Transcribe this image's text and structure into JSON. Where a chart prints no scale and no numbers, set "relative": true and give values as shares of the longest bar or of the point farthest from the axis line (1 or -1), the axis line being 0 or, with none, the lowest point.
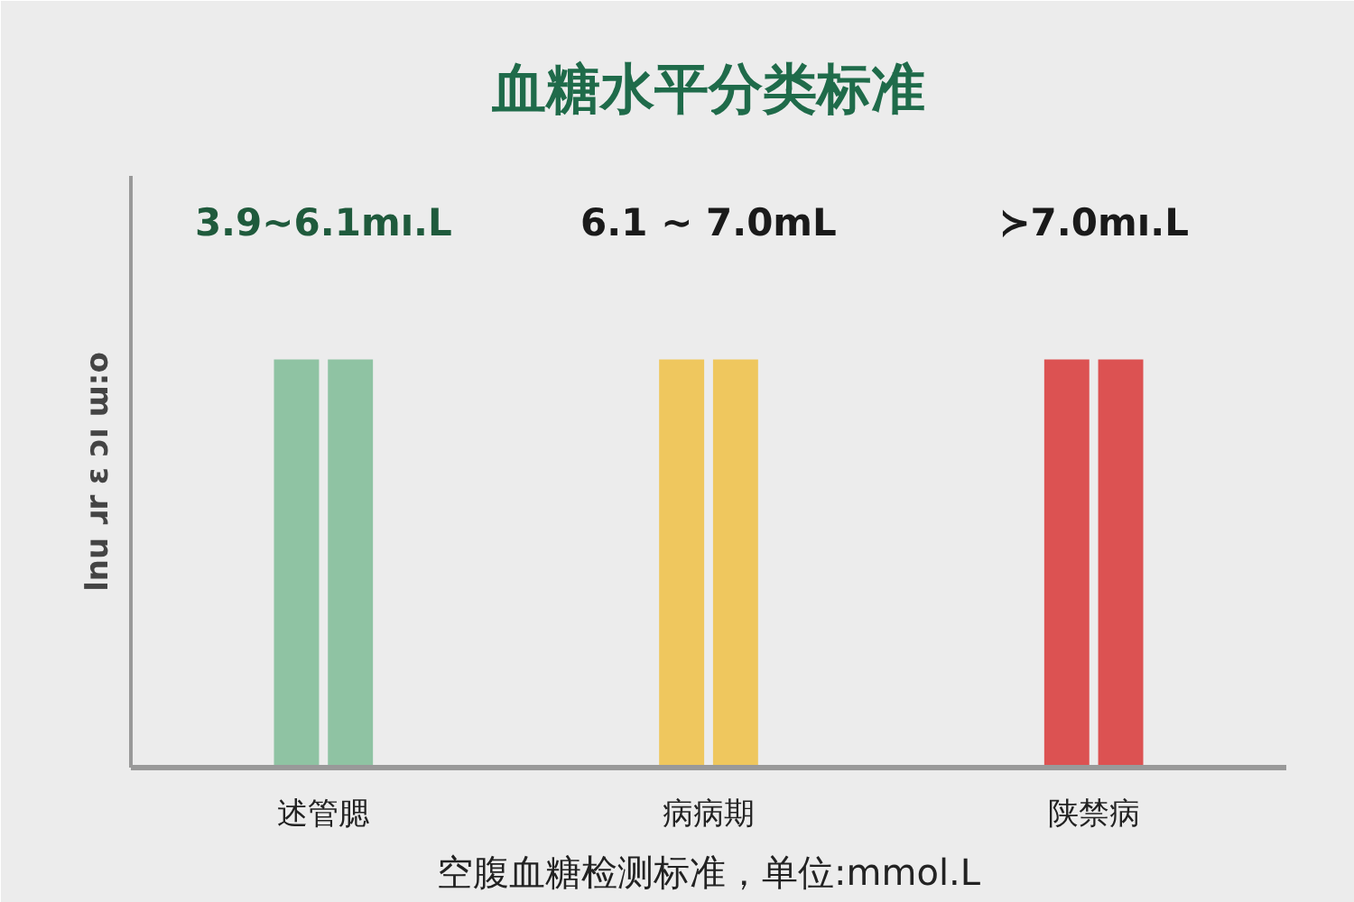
{
  "chart_data": {
    "type": "bar",
    "title": "血糖水平分类标准",
    "ylabel": "lnu ɹr ɛ ɔı ɯ:o",
    "relative": true,
    "categories": [
      "述管腮",
      "病病期",
      "陕禁病"
    ],
    "series": [
      {
        "colors": [
          "#8fc3a3",
          "#efc75e",
          "#dc5252"
        ],
        "values": [
          1,
          1,
          1
        ]
      },
      {
        "colors": [
          "#8fc3a3",
          "#efc75e",
          "#dc5252"
        ],
        "values": [
          1,
          1,
          1
        ]
      }
    ],
    "annotations": [
      "3.9~6.1mı.L",
      "6.1 ~ 7.0mL",
      "≻7.0mı.L",
      "空腹血糖检测标准，单位:mmol.L"
    ],
    "grid": false
  }
}
